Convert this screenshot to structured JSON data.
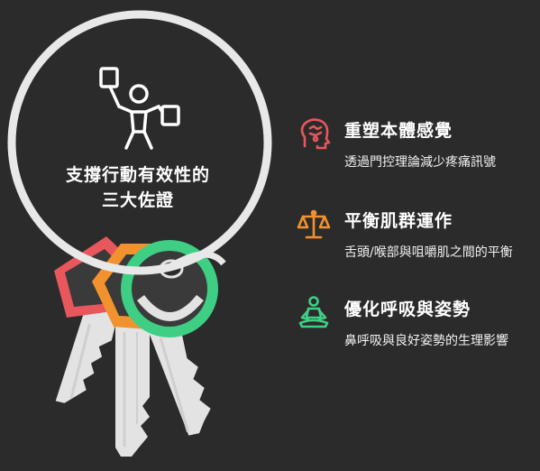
{
  "ring_title": {
    "line1": "支撐行動有效性的",
    "line2": "三大佐證"
  },
  "items": [
    {
      "heading": "重塑本體感覺",
      "description": "透過門控理論減少疼痛訊號",
      "icon": "head-thought-icon",
      "color": "#e8575c"
    },
    {
      "heading": "平衡肌群運作",
      "description": "舌頭/喉部與咀嚼肌之間的平衡",
      "icon": "balance-scale-icon",
      "color": "#f2922e"
    },
    {
      "heading": "優化呼吸與姿勢",
      "description": "鼻呼吸與良好姿勢的生理影響",
      "icon": "meditation-person-icon",
      "color": "#3ecf85"
    }
  ],
  "colors": {
    "background": "#2b2b2b",
    "red": "#e8575c",
    "orange": "#f2922e",
    "green": "#3ecf85",
    "ring": "#e8e8e8",
    "key": "#e0e0e0"
  }
}
